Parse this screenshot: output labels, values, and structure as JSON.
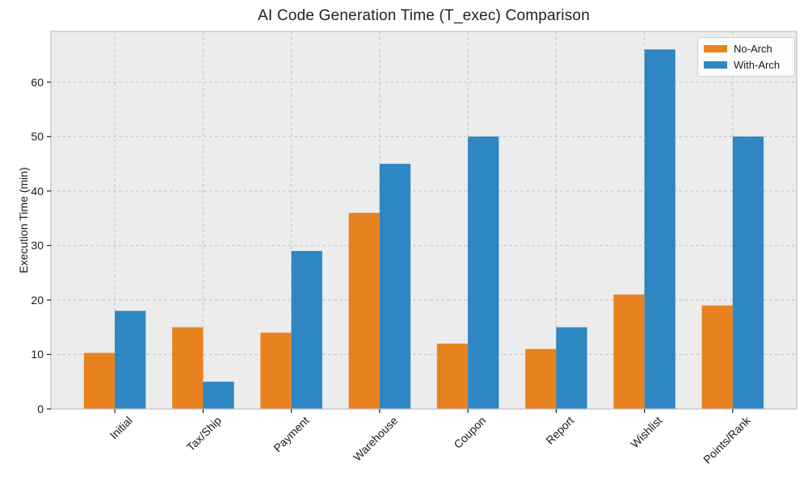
{
  "chart_data": {
    "type": "bar",
    "title": "AI Code Generation Time (T_exec) Comparison",
    "xlabel": "",
    "ylabel": "Execution Time (min)",
    "categories": [
      "Initial",
      "Tax/Ship",
      "Payment",
      "Warehouse",
      "Coupon",
      "Report",
      "Wishlist",
      "Points/Rank"
    ],
    "series": [
      {
        "name": "No-Arch",
        "color": "#e8821e",
        "values": [
          10.3,
          15,
          14,
          36,
          12,
          11,
          21,
          19
        ]
      },
      {
        "name": "With-Arch",
        "color": "#2e86c2",
        "values": [
          18,
          5,
          29,
          45,
          50,
          15,
          66,
          50
        ]
      }
    ],
    "yticks": [
      0,
      10,
      20,
      30,
      40,
      50,
      60
    ],
    "ylim": [
      0,
      69.3
    ],
    "bar_width": 0.35,
    "grid": "dashed horizontal and vertical gridlines",
    "legend_position": "upper right",
    "plot_bg_color": "#ececec",
    "grid_color": "#c6c6c6",
    "spine_color": "#c2c2c2",
    "tick_color": "#222222"
  }
}
